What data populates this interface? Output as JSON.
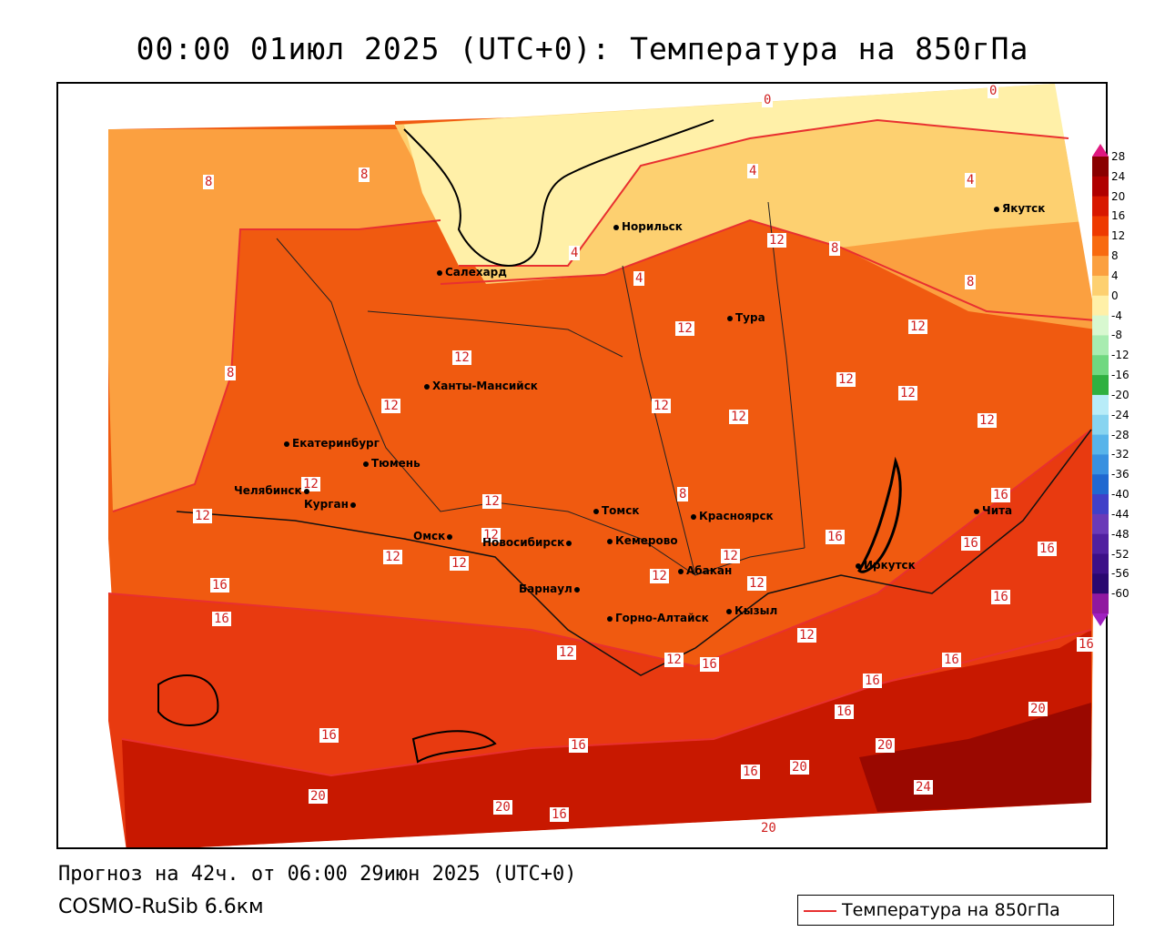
{
  "title": "00:00 01июл 2025 (UTC+0): Температура на 850гПа",
  "footer": {
    "forecast": "Прогноз на 42ч. от 06:00 29июн 2025 (UTC+0)",
    "model": "COSMO-RuSib 6.6км"
  },
  "legend": {
    "label": "Температура на 850гПа",
    "line_color": "#e83030"
  },
  "colorbar": {
    "labels": [
      "28",
      "24",
      "20",
      "16",
      "12",
      "8",
      "4",
      "0",
      "-4",
      "-8",
      "-12",
      "-16",
      "-20",
      "-24",
      "-28",
      "-32",
      "-36",
      "-40",
      "-44",
      "-48",
      "-52",
      "-56",
      "-60"
    ],
    "colors": [
      "#8a0000",
      "#b00000",
      "#d81800",
      "#ee3a00",
      "#f86a10",
      "#fba040",
      "#fdd070",
      "#fff0a8",
      "#d8f8d0",
      "#a8ecb0",
      "#70d880",
      "#30b040",
      "#b8ecf8",
      "#88d4f0",
      "#58b4ea",
      "#3890e0",
      "#2068d0",
      "#4040c8",
      "#6a3ab8",
      "#5020a0",
      "#3c1088",
      "#2a0870",
      "#9018a0"
    ],
    "top_color": "#e01880",
    "bottom_color": "#a020c0"
  },
  "cities": [
    {
      "name": "Норильск"
    },
    {
      "name": "Якутск"
    },
    {
      "name": "Салехард"
    },
    {
      "name": "Тура"
    },
    {
      "name": "Ханты-Мансийск"
    },
    {
      "name": "Екатеринбург"
    },
    {
      "name": "Тюмень"
    },
    {
      "name": "Челябинск"
    },
    {
      "name": "Курган"
    },
    {
      "name": "Омск"
    },
    {
      "name": "Томск"
    },
    {
      "name": "Новосибирск"
    },
    {
      "name": "Кемерово"
    },
    {
      "name": "Красноярск"
    },
    {
      "name": "Абакан"
    },
    {
      "name": "Барнаул"
    },
    {
      "name": "Горно-Алтайск"
    },
    {
      "name": "Кызыл"
    },
    {
      "name": "Иркутск"
    },
    {
      "name": "Чита"
    }
  ],
  "isolines": [
    "0",
    "0",
    "4",
    "4",
    "8",
    "8",
    "8",
    "8",
    "8",
    "4",
    "4",
    "12",
    "12",
    "12",
    "12",
    "12",
    "12",
    "12",
    "12",
    "12",
    "12",
    "12",
    "12",
    "12",
    "12",
    "12",
    "12",
    "12",
    "12",
    "12",
    "12",
    "12",
    "12",
    "16",
    "16",
    "16",
    "16",
    "16",
    "16",
    "16",
    "16",
    "16",
    "16",
    "16",
    "16",
    "16",
    "16",
    "16",
    "20",
    "20",
    "20",
    "20",
    "20",
    "20",
    "24",
    "16",
    "8"
  ]
}
